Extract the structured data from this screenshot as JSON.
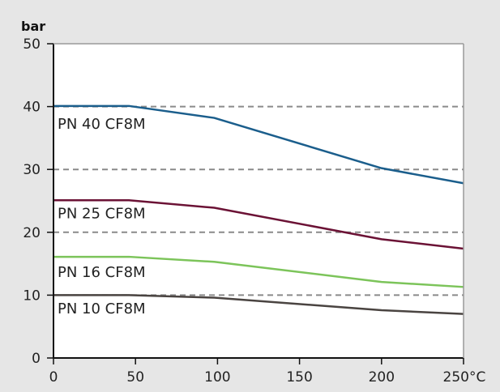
{
  "chart_data": {
    "type": "line",
    "title": "",
    "xlabel": "",
    "ylabel": "bar",
    "x_unit": "°C",
    "xlim": [
      0,
      250
    ],
    "ylim": [
      0,
      50
    ],
    "x_ticks": [
      0,
      50,
      100,
      150,
      200,
      250
    ],
    "y_ticks": [
      0,
      10,
      20,
      30,
      40,
      50
    ],
    "reference_lines_y": [
      10,
      20,
      30,
      40
    ],
    "legend": "none",
    "series": [
      {
        "name": "PN 40 CF8M",
        "color": "#1b5e8c",
        "x": [
          0,
          46,
          98,
          200,
          250
        ],
        "y": [
          40.1,
          40.1,
          38.2,
          30.2,
          27.8
        ]
      },
      {
        "name": "PN 25 CF8M",
        "color": "#6b1235",
        "x": [
          0,
          46,
          98,
          200,
          250
        ],
        "y": [
          25.1,
          25.1,
          23.9,
          18.9,
          17.4
        ]
      },
      {
        "name": "PN 16 CF8M",
        "color": "#7cc45a",
        "x": [
          0,
          46,
          98,
          200,
          250
        ],
        "y": [
          16.1,
          16.1,
          15.3,
          12.1,
          11.3
        ]
      },
      {
        "name": "PN 10 CF8M",
        "color": "#4a4441",
        "x": [
          0,
          46,
          98,
          200,
          250
        ],
        "y": [
          10.0,
          10.0,
          9.6,
          7.6,
          7.0
        ]
      }
    ],
    "label_anchor_y": [
      36.5,
      22.2,
      12.9,
      7.1
    ]
  }
}
